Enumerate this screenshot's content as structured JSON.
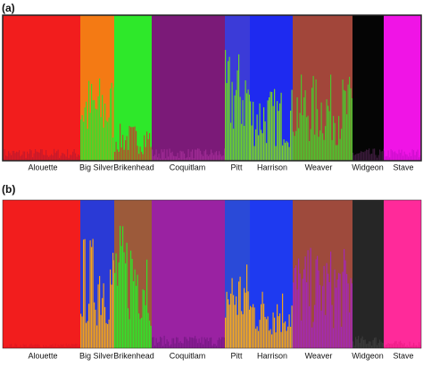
{
  "panels": [
    {
      "label": "(a)",
      "populations": [
        {
          "name": "Alouette",
          "colors": [
            "#f21d1d",
            "#c81a2a"
          ]
        },
        {
          "name": "Big Silver",
          "colors": [
            "#f47a14",
            "#3ddc2a"
          ]
        },
        {
          "name": "Brikenhead",
          "colors": [
            "#2ee82a",
            "#b0552a"
          ]
        },
        {
          "name": "Coquitlam",
          "colors": [
            "#7b1a78",
            "#9c2a92"
          ]
        },
        {
          "name": "Pitt",
          "colors": [
            "#3b3bd8",
            "#6bd12a"
          ]
        },
        {
          "name": "Harrison",
          "colors": [
            "#1e2af0",
            "#7ad02a"
          ]
        },
        {
          "name": "Weaver",
          "colors": [
            "#a2463a",
            "#4ec22e"
          ]
        },
        {
          "name": "Widgeon",
          "colors": [
            "#050505",
            "#3a1a3a"
          ]
        },
        {
          "name": "Stave",
          "colors": [
            "#f014e6",
            "#d10fd0"
          ]
        }
      ]
    },
    {
      "label": "(b)",
      "populations": [
        {
          "name": "Alouette",
          "colors": [
            "#f21d1d",
            "#e21820"
          ]
        },
        {
          "name": "Big Silver",
          "colors": [
            "#2a3ad6",
            "#f4a21a"
          ]
        },
        {
          "name": "Brikenhead",
          "colors": [
            "#9c5a3a",
            "#34e02a"
          ]
        },
        {
          "name": "Coquitlam",
          "colors": [
            "#9a22a2",
            "#7b1a88"
          ]
        },
        {
          "name": "Pitt",
          "colors": [
            "#2a4ad8",
            "#f4a820"
          ]
        },
        {
          "name": "Harrison",
          "colors": [
            "#1e3af0",
            "#f0a41a"
          ]
        },
        {
          "name": "Weaver",
          "colors": [
            "#9e4a3c",
            "#a32ab0"
          ]
        },
        {
          "name": "Widgeon",
          "colors": [
            "#262626",
            "#3a3a3a"
          ]
        },
        {
          "name": "Stave",
          "colors": [
            "#ff2a9a",
            "#f01e8a"
          ]
        }
      ]
    }
  ]
}
